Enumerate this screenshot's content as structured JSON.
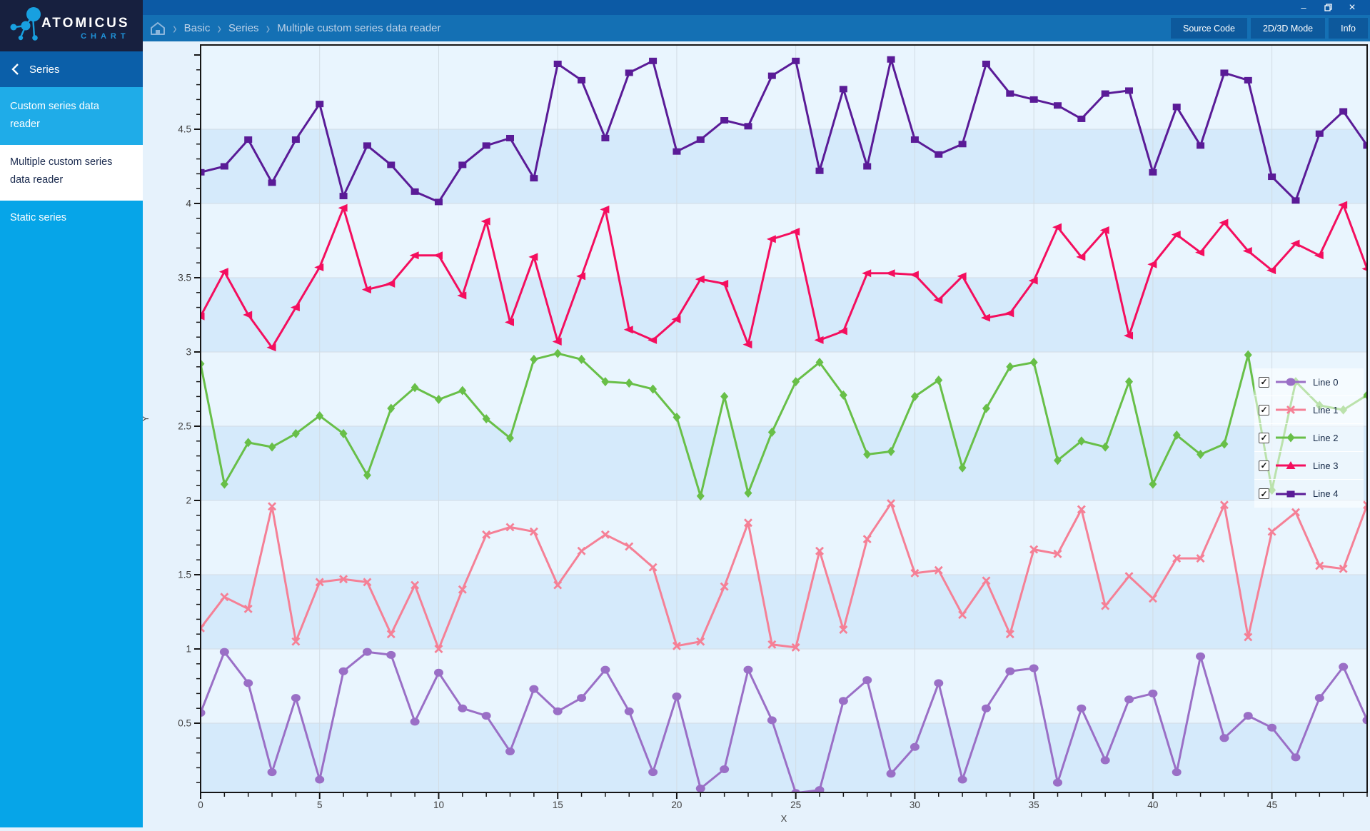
{
  "window": {
    "controls": {
      "minimize": "–",
      "maximize": "restore",
      "close": "×"
    }
  },
  "logo": {
    "title": "ATOMICUS",
    "subtitle": "CHART"
  },
  "header": {
    "breadcrumb": {
      "items": [
        "Basic",
        "Series",
        "Multiple custom series data reader"
      ],
      "separator": "›"
    },
    "buttons": [
      {
        "label": "Source Code"
      },
      {
        "label": "2D/3D Mode"
      },
      {
        "label": "Info"
      }
    ]
  },
  "sidebar": {
    "title": "Series",
    "items": [
      {
        "label": "Custom series data reader",
        "selected": false
      },
      {
        "label": "Multiple custom series data reader",
        "selected": true
      },
      {
        "label": "Static series",
        "selected": false
      }
    ]
  },
  "colors": {
    "titlebar": "#0c5aa5",
    "header": "#1470b4",
    "header_button": "#0d599c",
    "logo_bg": "#17203f",
    "logo_accent": "#1f93d9",
    "sidebar": "#06a5e8",
    "sidebar_header": "#0b5fa9",
    "selected_item_bg": "#ffffff",
    "selected_item_text": "#1a2a4e",
    "chart_outer": "#e6f2fc",
    "band_light": "#e9f5fe",
    "band_dark": "#d5eafb",
    "gridline": "#d2dce4",
    "axis": "#161616",
    "tick_label": "#3f3f3f",
    "legend_text": "#122644"
  },
  "chart_data": {
    "type": "line",
    "title": "",
    "xlabel": "X",
    "ylabel": "Y",
    "xlim": [
      0,
      49
    ],
    "ylim": [
      0.03,
      5.07
    ],
    "x_major_ticks": [
      0,
      5,
      10,
      15,
      20,
      25,
      30,
      35,
      40,
      45
    ],
    "x_minor_step": 1,
    "y_major_ticks": [
      0.5,
      1,
      1.5,
      2,
      2.5,
      3,
      3.5,
      4,
      4.5
    ],
    "y_minor_step": 0.1,
    "grid": "alternating horizontal bands each 0.5; vertical gridlines each 5",
    "legend_position": "right-center overlay",
    "x": [
      0,
      1,
      2,
      3,
      4,
      5,
      6,
      7,
      8,
      9,
      10,
      11,
      12,
      13,
      14,
      15,
      16,
      17,
      18,
      19,
      20,
      21,
      22,
      23,
      24,
      25,
      26,
      27,
      28,
      29,
      30,
      31,
      32,
      33,
      34,
      35,
      36,
      37,
      38,
      39,
      40,
      41,
      42,
      43,
      44,
      45,
      46,
      47,
      48,
      49
    ],
    "series": [
      {
        "name": "Line 0",
        "color": "#9a6fc6",
        "marker": "circle",
        "checked": true,
        "values": [
          0.57,
          0.98,
          0.77,
          0.17,
          0.67,
          0.12,
          0.85,
          0.98,
          0.96,
          0.51,
          0.84,
          0.6,
          0.55,
          0.31,
          0.73,
          0.58,
          0.67,
          0.86,
          0.58,
          0.17,
          0.68,
          0.06,
          0.19,
          0.86,
          0.52,
          0.03,
          0.05,
          0.65,
          0.79,
          0.16,
          0.34,
          0.77,
          0.12,
          0.6,
          0.85,
          0.87,
          0.1,
          0.6,
          0.25,
          0.66,
          0.7,
          0.17,
          0.95,
          0.4,
          0.55,
          0.47,
          0.27,
          0.67,
          0.88,
          0.52
        ]
      },
      {
        "name": "Line 1",
        "color": "#f58096",
        "marker": "x",
        "checked": true,
        "values": [
          1.14,
          1.35,
          1.27,
          1.96,
          1.05,
          1.45,
          1.47,
          1.45,
          1.1,
          1.43,
          1.0,
          1.4,
          1.77,
          1.82,
          1.79,
          1.43,
          1.66,
          1.77,
          1.69,
          1.55,
          1.02,
          1.05,
          1.42,
          1.85,
          1.03,
          1.01,
          1.66,
          1.13,
          1.74,
          1.98,
          1.51,
          1.53,
          1.23,
          1.46,
          1.1,
          1.67,
          1.64,
          1.94,
          1.29,
          1.49,
          1.34,
          1.61,
          1.61,
          1.97,
          1.08,
          1.79,
          1.92,
          1.56,
          1.54,
          1.97
        ]
      },
      {
        "name": "Line 2",
        "color": "#68bf48",
        "marker": "diamond",
        "checked": true,
        "values": [
          2.92,
          2.11,
          2.39,
          2.36,
          2.45,
          2.57,
          2.45,
          2.17,
          2.62,
          2.76,
          2.68,
          2.74,
          2.55,
          2.42,
          2.95,
          2.99,
          2.95,
          2.8,
          2.79,
          2.75,
          2.56,
          2.03,
          2.7,
          2.05,
          2.46,
          2.8,
          2.93,
          2.71,
          2.31,
          2.33,
          2.7,
          2.81,
          2.22,
          2.62,
          2.9,
          2.93,
          2.27,
          2.4,
          2.36,
          2.8,
          2.11,
          2.44,
          2.31,
          2.38,
          2.98,
          2.07,
          2.8,
          2.64,
          2.61,
          2.71
        ]
      },
      {
        "name": "Line 3",
        "color": "#f40e5e",
        "marker": "triangle",
        "checked": true,
        "values": [
          3.24,
          3.54,
          3.25,
          3.03,
          3.3,
          3.57,
          3.97,
          3.42,
          3.46,
          3.65,
          3.65,
          3.38,
          3.88,
          3.2,
          3.64,
          3.07,
          3.51,
          3.96,
          3.15,
          3.08,
          3.22,
          3.49,
          3.46,
          3.05,
          3.76,
          3.81,
          3.08,
          3.14,
          3.53,
          3.53,
          3.52,
          3.35,
          3.51,
          3.23,
          3.26,
          3.48,
          3.84,
          3.64,
          3.82,
          3.11,
          3.59,
          3.79,
          3.67,
          3.87,
          3.68,
          3.55,
          3.73,
          3.65,
          3.99,
          3.56
        ]
      },
      {
        "name": "Line 4",
        "color": "#5a1b97",
        "marker": "square",
        "checked": true,
        "values": [
          4.21,
          4.25,
          4.43,
          4.14,
          4.43,
          4.67,
          4.05,
          4.39,
          4.26,
          4.08,
          4.01,
          4.26,
          4.39,
          4.44,
          4.17,
          4.94,
          4.83,
          4.44,
          4.88,
          4.96,
          4.35,
          4.43,
          4.56,
          4.52,
          4.86,
          4.96,
          4.22,
          4.77,
          4.25,
          4.97,
          4.43,
          4.33,
          4.4,
          4.94,
          4.74,
          4.7,
          4.66,
          4.57,
          4.74,
          4.76,
          4.21,
          4.65,
          4.39,
          4.88,
          4.83,
          4.18,
          4.02,
          4.47,
          4.62,
          4.39
        ]
      }
    ]
  }
}
